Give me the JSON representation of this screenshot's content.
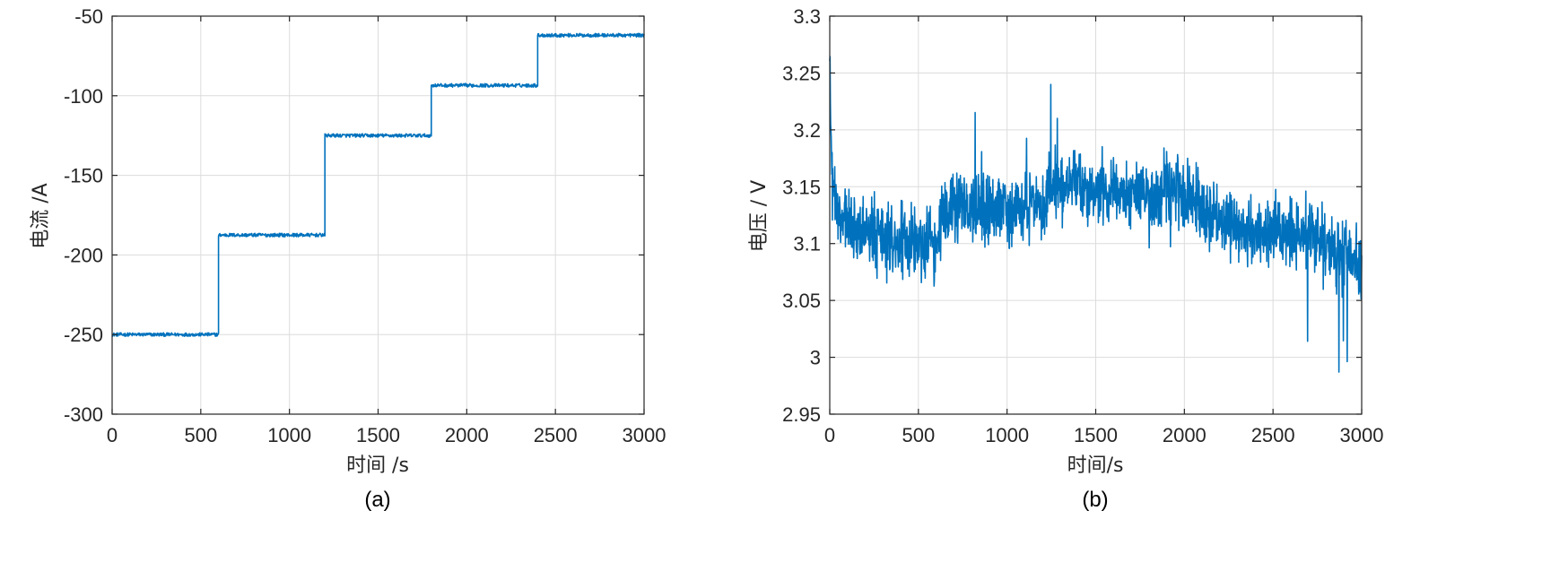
{
  "chart_data": [
    {
      "type": "line",
      "caption": "(a)",
      "xlabel": "时间 /s",
      "ylabel": "电流 /A",
      "xlim": [
        0,
        3000
      ],
      "ylim": [
        -300,
        -50
      ],
      "xticks": [
        0,
        500,
        1000,
        1500,
        2000,
        2500,
        3000
      ],
      "yticks": [
        -300,
        -250,
        -200,
        -150,
        -100,
        -50
      ],
      "grid": true,
      "color": "#0072BD",
      "series": [
        {
          "steps": [
            {
              "x": [
                0,
                600
              ],
              "y": -250
            },
            {
              "x": [
                600,
                1200
              ],
              "y": -187.5
            },
            {
              "x": [
                1200,
                1800
              ],
              "y": -125
            },
            {
              "x": [
                1800,
                2400
              ],
              "y": -93.5
            },
            {
              "x": [
                2400,
                3000
              ],
              "y": -62
            }
          ]
        }
      ]
    },
    {
      "type": "line",
      "caption": "(b)",
      "xlabel": "时间/s",
      "ylabel": "电压 / V",
      "xlim": [
        0,
        3000
      ],
      "ylim": [
        2.95,
        3.3
      ],
      "xticks": [
        0,
        500,
        1000,
        1500,
        2000,
        2500,
        3000
      ],
      "yticks": [
        2.95,
        3,
        3.05,
        3.1,
        3.15,
        3.2,
        3.25,
        3.3
      ],
      "grid": true,
      "color": "#0072BD",
      "series": [
        {
          "x": [
            0,
            10,
            50,
            200,
            400,
            600,
            650,
            900,
            1200,
            1250,
            1500,
            1800,
            1900,
            2100,
            2400,
            2700,
            2900,
            3000
          ],
          "y": [
            3.27,
            3.16,
            3.12,
            3.11,
            3.1,
            3.1,
            3.13,
            3.13,
            3.13,
            3.15,
            3.15,
            3.14,
            3.15,
            3.13,
            3.11,
            3.11,
            3.09,
            3.08
          ]
        }
      ]
    }
  ]
}
